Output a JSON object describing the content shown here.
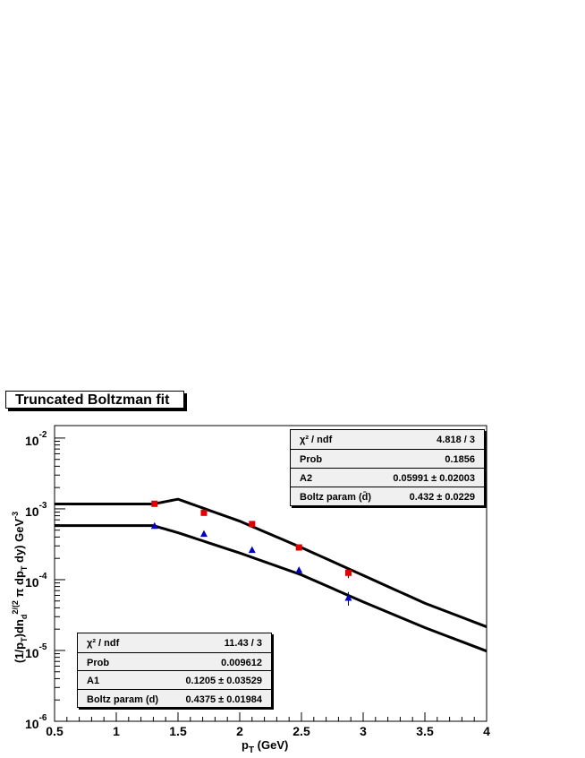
{
  "title": "Truncated Boltzman fit",
  "chart_data": {
    "type": "scatter",
    "title": "Truncated Boltzman fit",
    "xlabel": "p_T (GeV)",
    "ylabel": "(1/p_T)dn_d^2/(2 π dp_T dy) GeV^-3",
    "xlim": [
      0.5,
      4
    ],
    "ylim": [
      1e-06,
      0.015
    ],
    "yscale": "log",
    "x_ticks": [
      "0.5",
      "1",
      "1.5",
      "2",
      "2.5",
      "3",
      "3.5",
      "4"
    ],
    "y_ticks": [
      {
        "base": "10",
        "exp": "-2",
        "value": 0.01
      },
      {
        "base": "10",
        "exp": "-3",
        "value": 0.001
      },
      {
        "base": "10",
        "exp": "-4",
        "value": 0.0001
      },
      {
        "base": "10",
        "exp": "-5",
        "value": 1e-05
      },
      {
        "base": "10",
        "exp": "-6",
        "value": 1e-06
      }
    ],
    "series": [
      {
        "color": "#e00000",
        "marker": "square",
        "x": [
          1.31,
          1.71,
          2.1,
          2.48,
          2.88
        ],
        "y": [
          0.00118,
          0.00088,
          0.00061,
          0.000285,
          0.000125
        ],
        "yerr": [
          6e-05,
          5e-05,
          4e-05,
          2e-05,
          2e-05
        ],
        "fit_x": [
          0.5,
          1.3,
          1.5,
          2.0,
          2.5,
          3.0,
          3.5,
          4.0
        ],
        "fit_y": [
          0.00117,
          0.00117,
          0.00137,
          0.00067,
          0.000284,
          0.000115,
          4.65e-05,
          2.16e-05
        ]
      },
      {
        "color": "#0000c8",
        "marker": "triangle",
        "x": [
          1.31,
          1.71,
          2.1,
          2.48,
          2.88
        ],
        "y": [
          0.00057,
          0.00044,
          0.00026,
          0.000135,
          5.5e-05
        ],
        "yerr": [
          3e-05,
          3e-05,
          2e-05,
          1.5e-05,
          1.2e-05
        ],
        "fit_x": [
          0.5,
          1.3,
          1.5,
          2.0,
          2.5,
          3.0,
          3.5,
          4.0
        ],
        "fit_y": [
          0.00058,
          0.00058,
          0.00046,
          0.000238,
          0.000117,
          4.85e-05,
          2.1e-05,
          9.8e-06
        ]
      }
    ],
    "stats": [
      {
        "position": "top-right",
        "rows": [
          {
            "key": "χ² / ndf",
            "value": "4.818 / 3"
          },
          {
            "key": "Prob",
            "value": "0.1856"
          },
          {
            "key": "A2",
            "value": "0.05991 ± 0.02003"
          },
          {
            "key": "Boltz param (d̄)",
            "value": "0.432 ± 0.0229"
          }
        ]
      },
      {
        "position": "bottom-left",
        "rows": [
          {
            "key": "χ² / ndf",
            "value": "11.43 / 3"
          },
          {
            "key": "Prob",
            "value": "0.009612"
          },
          {
            "key": "A1",
            "value": "0.1205 ± 0.03529"
          },
          {
            "key": "Boltz param (d)",
            "value": "0.4375 ± 0.01984"
          }
        ]
      }
    ]
  }
}
